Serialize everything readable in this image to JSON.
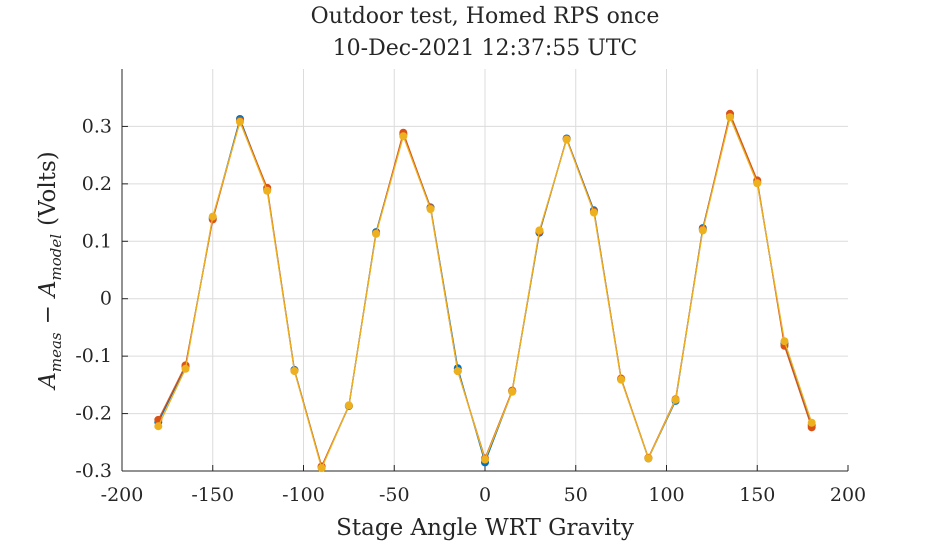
{
  "chart_data": {
    "type": "line",
    "title": [
      "Outdoor test, Homed RPS once",
      "10-Dec-2021 12:37:55 UTC"
    ],
    "xlabel": "Stage Angle WRT Gravity",
    "ylabel": {
      "a1": "A",
      "s1": "meas",
      "minus": "−",
      "a2": "A",
      "s2": "model",
      "unit": "(Volts)"
    },
    "xlim": [
      -200,
      200
    ],
    "ylim": [
      -0.3,
      0.4
    ],
    "xticks": [
      -200,
      -150,
      -100,
      -50,
      0,
      50,
      100,
      150,
      200
    ],
    "xtick_labels": [
      "-200",
      "-150",
      "-100",
      "-50",
      "0",
      "50",
      "100",
      "150",
      "200"
    ],
    "yticks": [
      -0.3,
      -0.2,
      -0.1,
      0,
      0.1,
      0.2,
      0.3
    ],
    "ytick_labels": [
      "-0.3",
      "-0.2",
      "-0.1",
      "0",
      "0.1",
      "0.2",
      "0.3"
    ],
    "grid": true,
    "x": [
      -180,
      -165,
      -150,
      -135,
      -120,
      -105,
      -90,
      -75,
      -60,
      -45,
      -30,
      -15,
      0,
      15,
      30,
      45,
      60,
      75,
      90,
      105,
      120,
      135,
      150,
      165,
      180
    ],
    "series": [
      {
        "color": "#0072BD",
        "values": [
          -0.215,
          -0.118,
          0.14,
          0.313,
          0.19,
          -0.124,
          -0.293,
          -0.187,
          0.116,
          0.286,
          0.159,
          -0.121,
          -0.285,
          -0.161,
          0.115,
          0.279,
          0.154,
          -0.14,
          -0.278,
          -0.178,
          0.123,
          0.317,
          0.203,
          -0.078,
          -0.22
        ]
      },
      {
        "color": "#D95319",
        "values": [
          -0.211,
          -0.116,
          0.138,
          0.31,
          0.193,
          -0.125,
          -0.292,
          -0.186,
          0.114,
          0.289,
          0.158,
          -0.126,
          -0.278,
          -0.16,
          0.117,
          0.278,
          0.152,
          -0.139,
          -0.277,
          -0.175,
          0.121,
          0.322,
          0.206,
          -0.082,
          -0.224
        ]
      },
      {
        "color": "#EDB120",
        "values": [
          -0.222,
          -0.122,
          0.143,
          0.308,
          0.188,
          -0.126,
          -0.295,
          -0.186,
          0.113,
          0.283,
          0.156,
          -0.126,
          -0.28,
          -0.162,
          0.119,
          0.277,
          0.15,
          -0.141,
          -0.278,
          -0.176,
          0.119,
          0.316,
          0.201,
          -0.074,
          -0.216
        ]
      }
    ]
  }
}
